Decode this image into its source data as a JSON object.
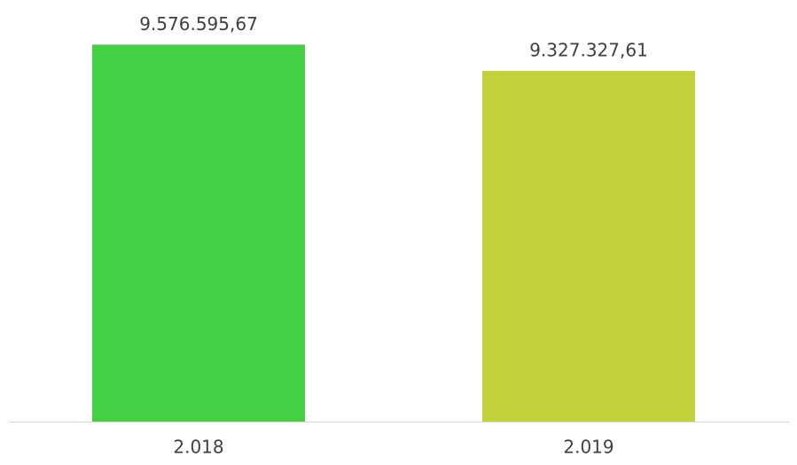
{
  "chart_data": {
    "type": "bar",
    "categories": [
      "2.018",
      "2.019"
    ],
    "values": [
      9576595.67,
      9327327.61
    ],
    "value_labels": [
      "9.576.595,67",
      "9.327.327,61"
    ],
    "colors": [
      "#44d044",
      "#c3d13c"
    ],
    "ylim": [
      6000000,
      10000000
    ]
  }
}
